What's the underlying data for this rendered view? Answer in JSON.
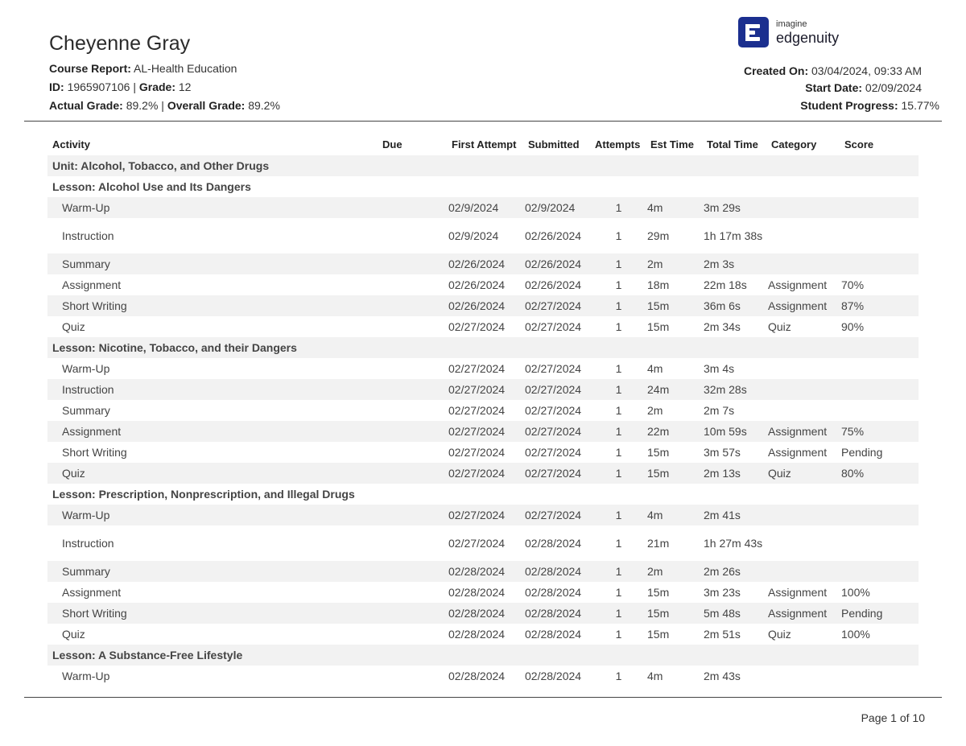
{
  "header": {
    "student_name": "Cheyenne Gray",
    "course_label": "Course Report:",
    "course_value": "AL-Health Education",
    "id_label": "ID:",
    "id_value": "1965907106",
    "separator": "|",
    "grade_label": "Grade:",
    "grade_value": "12",
    "actual_label": "Actual Grade:",
    "actual_value": "89.2%",
    "overall_label": "Overall Grade:",
    "overall_value": "89.2%",
    "created_label": "Created On:",
    "created_value": "03/04/2024, 09:33 AM",
    "start_label": "Start Date:",
    "start_value": "02/09/2024",
    "progress_label": "Student Progress:",
    "progress_value": "15.77%"
  },
  "logo": {
    "small": "imagine",
    "big": "edgenuity",
    "icon": "edgenuity-logo-icon"
  },
  "columns": [
    "Activity",
    "Due",
    "First Attempt",
    "Submitted",
    "Attempts",
    "Est Time",
    "Total Time",
    "Category",
    "Score"
  ],
  "rows": [
    {
      "type": "unit",
      "label": "Unit: Alcohol, Tobacco, and Other Drugs"
    },
    {
      "type": "lesson",
      "label": "Lesson: Alcohol Use and Its Dangers"
    },
    {
      "type": "activity",
      "activity": "Warm-Up",
      "due": "",
      "first": "02/9/2024",
      "submitted": "02/9/2024",
      "attempts": "1",
      "est": "4m",
      "total": "3m 29s",
      "category": "",
      "score": ""
    },
    {
      "type": "activity",
      "activity": "Instruction",
      "due": "",
      "first": "02/9/2024",
      "submitted": "02/26/2024",
      "attempts": "1",
      "est": "29m",
      "total": "1h 17m 38s",
      "category": "",
      "score": ""
    },
    {
      "type": "activity",
      "activity": "Summary",
      "due": "",
      "first": "02/26/2024",
      "submitted": "02/26/2024",
      "attempts": "1",
      "est": "2m",
      "total": "2m 3s",
      "category": "",
      "score": ""
    },
    {
      "type": "activity",
      "activity": "Assignment",
      "due": "",
      "first": "02/26/2024",
      "submitted": "02/26/2024",
      "attempts": "1",
      "est": "18m",
      "total": "22m 18s",
      "category": "Assignment",
      "score": "70%"
    },
    {
      "type": "activity",
      "activity": "Short Writing",
      "due": "",
      "first": "02/26/2024",
      "submitted": "02/27/2024",
      "attempts": "1",
      "est": "15m",
      "total": "36m 6s",
      "category": "Assignment",
      "score": "87%"
    },
    {
      "type": "activity",
      "activity": "Quiz",
      "due": "",
      "first": "02/27/2024",
      "submitted": "02/27/2024",
      "attempts": "1",
      "est": "15m",
      "total": "2m 34s",
      "category": "Quiz",
      "score": "90%"
    },
    {
      "type": "lesson",
      "label": "Lesson: Nicotine, Tobacco, and their Dangers"
    },
    {
      "type": "activity",
      "activity": "Warm-Up",
      "due": "",
      "first": "02/27/2024",
      "submitted": "02/27/2024",
      "attempts": "1",
      "est": "4m",
      "total": "3m 4s",
      "category": "",
      "score": ""
    },
    {
      "type": "activity",
      "activity": "Instruction",
      "due": "",
      "first": "02/27/2024",
      "submitted": "02/27/2024",
      "attempts": "1",
      "est": "24m",
      "total": "32m 28s",
      "category": "",
      "score": ""
    },
    {
      "type": "activity",
      "activity": "Summary",
      "due": "",
      "first": "02/27/2024",
      "submitted": "02/27/2024",
      "attempts": "1",
      "est": "2m",
      "total": "2m 7s",
      "category": "",
      "score": ""
    },
    {
      "type": "activity",
      "activity": "Assignment",
      "due": "",
      "first": "02/27/2024",
      "submitted": "02/27/2024",
      "attempts": "1",
      "est": "22m",
      "total": "10m 59s",
      "category": "Assignment",
      "score": "75%"
    },
    {
      "type": "activity",
      "activity": "Short Writing",
      "due": "",
      "first": "02/27/2024",
      "submitted": "02/27/2024",
      "attempts": "1",
      "est": "15m",
      "total": "3m 57s",
      "category": "Assignment",
      "score": "Pending"
    },
    {
      "type": "activity",
      "activity": "Quiz",
      "due": "",
      "first": "02/27/2024",
      "submitted": "02/27/2024",
      "attempts": "1",
      "est": "15m",
      "total": "2m 13s",
      "category": "Quiz",
      "score": "80%"
    },
    {
      "type": "lesson",
      "label": "Lesson: Prescription, Nonprescription, and Illegal Drugs"
    },
    {
      "type": "activity",
      "activity": "Warm-Up",
      "due": "",
      "first": "02/27/2024",
      "submitted": "02/27/2024",
      "attempts": "1",
      "est": "4m",
      "total": "2m 41s",
      "category": "",
      "score": ""
    },
    {
      "type": "activity",
      "activity": "Instruction",
      "due": "",
      "first": "02/27/2024",
      "submitted": "02/28/2024",
      "attempts": "1",
      "est": "21m",
      "total": "1h 27m 43s",
      "category": "",
      "score": ""
    },
    {
      "type": "activity",
      "activity": "Summary",
      "due": "",
      "first": "02/28/2024",
      "submitted": "02/28/2024",
      "attempts": "1",
      "est": "2m",
      "total": "2m 26s",
      "category": "",
      "score": ""
    },
    {
      "type": "activity",
      "activity": "Assignment",
      "due": "",
      "first": "02/28/2024",
      "submitted": "02/28/2024",
      "attempts": "1",
      "est": "15m",
      "total": "3m 23s",
      "category": "Assignment",
      "score": "100%"
    },
    {
      "type": "activity",
      "activity": "Short Writing",
      "due": "",
      "first": "02/28/2024",
      "submitted": "02/28/2024",
      "attempts": "1",
      "est": "15m",
      "total": "5m 48s",
      "category": "Assignment",
      "score": "Pending"
    },
    {
      "type": "activity",
      "activity": "Quiz",
      "due": "",
      "first": "02/28/2024",
      "submitted": "02/28/2024",
      "attempts": "1",
      "est": "15m",
      "total": "2m 51s",
      "category": "Quiz",
      "score": "100%"
    },
    {
      "type": "lesson",
      "label": "Lesson: A Substance-Free Lifestyle"
    },
    {
      "type": "activity",
      "activity": "Warm-Up",
      "due": "",
      "first": "02/28/2024",
      "submitted": "02/28/2024",
      "attempts": "1",
      "est": "4m",
      "total": "2m 43s",
      "category": "",
      "score": ""
    }
  ],
  "footer": {
    "page_label": "Page 1 of 10"
  }
}
